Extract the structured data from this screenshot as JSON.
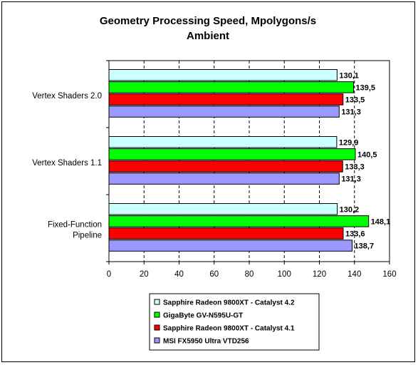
{
  "chart_data": {
    "type": "bar",
    "orientation": "horizontal",
    "title": "Geometry Processing Speed, Mpolygons/s",
    "subtitle": "Ambient",
    "xlabel": "",
    "ylabel": "",
    "xlim": [
      0,
      160
    ],
    "x_ticks": [
      "0",
      "20",
      "40",
      "60",
      "80",
      "100",
      "120",
      "140",
      "160"
    ],
    "grid": "vertical dashed",
    "legend_position": "bottom",
    "categories": [
      [
        "Vertex Shaders 2.0"
      ],
      [
        "Vertex Shaders 1.1"
      ],
      [
        "Fixed-Function",
        "Pipeline"
      ]
    ],
    "series": [
      {
        "name": "Sapphire Radeon 9800XT - Catalyst 4.2",
        "color": "#ccffff",
        "values": [
          130.1,
          129.9,
          130.2
        ],
        "labels": [
          "130,1",
          "129,9",
          "130,2"
        ]
      },
      {
        "name": "GigaByte GV-N595U-GT",
        "color": "#00ff00",
        "values": [
          139.5,
          140.5,
          148.1
        ],
        "labels": [
          "139,5",
          "140,5",
          "148,1"
        ]
      },
      {
        "name": "Sapphire Radeon 9800XT - Catalyst 4.1",
        "color": "#ff0000",
        "values": [
          133.5,
          133.3,
          133.6
        ],
        "labels": [
          "133,5",
          "133,3",
          "133,6"
        ]
      },
      {
        "name": "MSI FX5950 Ultra VTD256",
        "color": "#9999ff",
        "values": [
          131.3,
          131.3,
          138.7
        ],
        "labels": [
          "131,3",
          "131,3",
          "138,7"
        ]
      }
    ]
  }
}
